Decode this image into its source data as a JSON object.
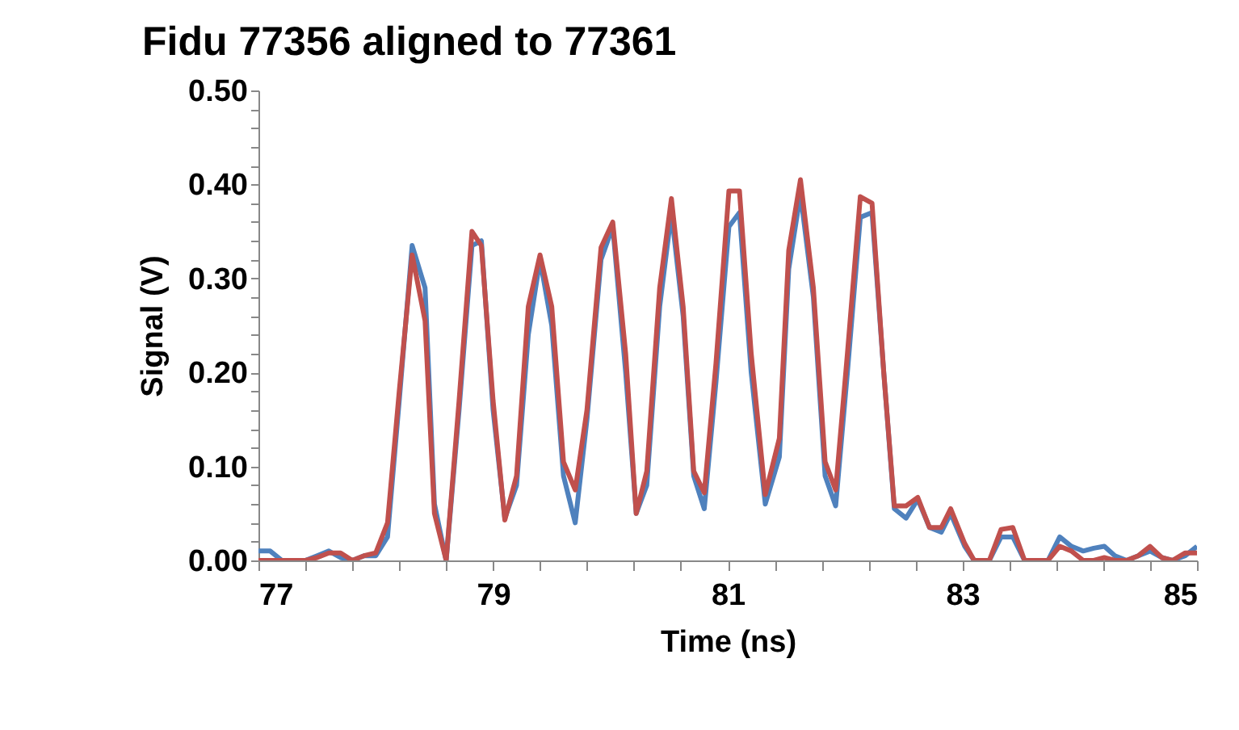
{
  "chart_data": {
    "type": "line",
    "title": "Fidu 77356 aligned to 77361",
    "xlabel": "Time (ns)",
    "ylabel": "Signal (V)",
    "x": [
      77.0,
      77.1,
      77.2,
      77.3,
      77.4,
      77.5,
      77.6,
      77.7,
      77.8,
      77.9,
      78.0,
      78.1,
      78.2,
      78.31,
      78.42,
      78.5,
      78.6,
      78.71,
      78.82,
      78.9,
      79.0,
      79.1,
      79.2,
      79.3,
      79.4,
      79.5,
      79.6,
      79.7,
      79.8,
      79.92,
      80.02,
      80.13,
      80.22,
      80.31,
      80.42,
      80.52,
      80.62,
      80.71,
      80.8,
      80.9,
      81.01,
      81.1,
      81.2,
      81.32,
      81.44,
      81.52,
      81.62,
      81.73,
      81.83,
      81.92,
      82.02,
      82.13,
      82.23,
      82.33,
      82.42,
      82.52,
      82.62,
      82.72,
      82.82,
      82.9,
      83.02,
      83.1,
      83.23,
      83.33,
      83.43,
      83.53,
      83.65,
      83.73,
      83.83,
      83.93,
      84.03,
      84.12,
      84.21,
      84.3,
      84.4,
      84.5,
      84.6,
      84.7,
      84.79,
      84.9,
      85.0
    ],
    "series": [
      {
        "color": "#4f81bd",
        "values": [
          0.01,
          0.01,
          0,
          0,
          0,
          0.005,
          0.01,
          0.003,
          0,
          0.005,
          0.005,
          0.025,
          0.17,
          0.335,
          0.29,
          0.06,
          0,
          0.16,
          0.335,
          0.34,
          0.16,
          0.045,
          0.08,
          0.24,
          0.32,
          0.25,
          0.09,
          0.04,
          0.15,
          0.32,
          0.355,
          0.2,
          0.05,
          0.08,
          0.27,
          0.37,
          0.26,
          0.09,
          0.055,
          0.19,
          0.355,
          0.37,
          0.2,
          0.06,
          0.11,
          0.31,
          0.39,
          0.28,
          0.09,
          0.058,
          0.2,
          0.365,
          0.37,
          0.2,
          0.055,
          0.045,
          0.065,
          0.035,
          0.03,
          0.05,
          0.015,
          0,
          0,
          0.025,
          0.025,
          0,
          0,
          0,
          0.025,
          0.015,
          0.01,
          0.013,
          0.015,
          0.005,
          0,
          0.005,
          0.01,
          0.003,
          0,
          0.005,
          0.015
        ]
      },
      {
        "color": "#c0504d",
        "values": [
          0,
          0,
          0,
          0,
          0,
          0.003,
          0.008,
          0.008,
          0,
          0.005,
          0.008,
          0.04,
          0.18,
          0.325,
          0.255,
          0.05,
          0,
          0.17,
          0.35,
          0.335,
          0.17,
          0.043,
          0.09,
          0.27,
          0.325,
          0.27,
          0.105,
          0.075,
          0.16,
          0.333,
          0.36,
          0.22,
          0.05,
          0.095,
          0.29,
          0.385,
          0.27,
          0.095,
          0.072,
          0.21,
          0.393,
          0.393,
          0.22,
          0.07,
          0.13,
          0.33,
          0.405,
          0.29,
          0.105,
          0.075,
          0.22,
          0.387,
          0.38,
          0.2,
          0.058,
          0.058,
          0.067,
          0.035,
          0.035,
          0.055,
          0.018,
          0,
          0,
          0.033,
          0.035,
          0,
          0,
          0,
          0.015,
          0.01,
          0,
          0,
          0.003,
          0,
          0,
          0.005,
          0.015,
          0.003,
          0,
          0.008,
          0.008
        ]
      }
    ],
    "xlim": [
      77,
      85
    ],
    "xticks": [
      77,
      {
        "value": 77.4,
        "label": null
      },
      {
        "value": 77.8,
        "label": null
      },
      {
        "value": 78.2,
        "label": null
      },
      {
        "value": 78.6,
        "label": null
      },
      79,
      {
        "value": 79.4,
        "label": null
      },
      {
        "value": 79.8,
        "label": null
      },
      {
        "value": 80.2,
        "label": null
      },
      {
        "value": 80.6,
        "label": null
      },
      81,
      {
        "value": 81.4,
        "label": null
      },
      {
        "value": 81.8,
        "label": null
      },
      {
        "value": 82.2,
        "label": null
      },
      {
        "value": 82.6,
        "label": null
      },
      83,
      {
        "value": 83.4,
        "label": null
      },
      {
        "value": 83.8,
        "label": null
      },
      {
        "value": 84.2,
        "label": null
      },
      {
        "value": 84.6,
        "label": null
      },
      85
    ],
    "ylim": [
      0,
      0.5
    ],
    "yticks": [
      {
        "value": 0,
        "label": "0.00"
      },
      {
        "value": 0.02,
        "label": null
      },
      {
        "value": 0.04,
        "label": null
      },
      {
        "value": 0.06,
        "label": null
      },
      {
        "value": 0.08,
        "label": null
      },
      {
        "value": 0.1,
        "label": "0.10"
      },
      {
        "value": 0.12,
        "label": null
      },
      {
        "value": 0.14,
        "label": null
      },
      {
        "value": 0.16,
        "label": null
      },
      {
        "value": 0.18,
        "label": null
      },
      {
        "value": 0.2,
        "label": "0.20"
      },
      {
        "value": 0.22,
        "label": null
      },
      {
        "value": 0.24,
        "label": null
      },
      {
        "value": 0.26,
        "label": null
      },
      {
        "value": 0.28,
        "label": null
      },
      {
        "value": 0.3,
        "label": "0.30"
      },
      {
        "value": 0.32,
        "label": null
      },
      {
        "value": 0.34,
        "label": null
      },
      {
        "value": 0.36,
        "label": null
      },
      {
        "value": 0.38,
        "label": null
      },
      {
        "value": 0.4,
        "label": "0.40"
      },
      {
        "value": 0.42,
        "label": null
      },
      {
        "value": 0.44,
        "label": null
      },
      {
        "value": 0.46,
        "label": null
      },
      {
        "value": 0.48,
        "label": null
      },
      {
        "value": 0.5,
        "label": "0.50"
      }
    ],
    "grid": false,
    "marker": "none",
    "line_style": "solid"
  }
}
